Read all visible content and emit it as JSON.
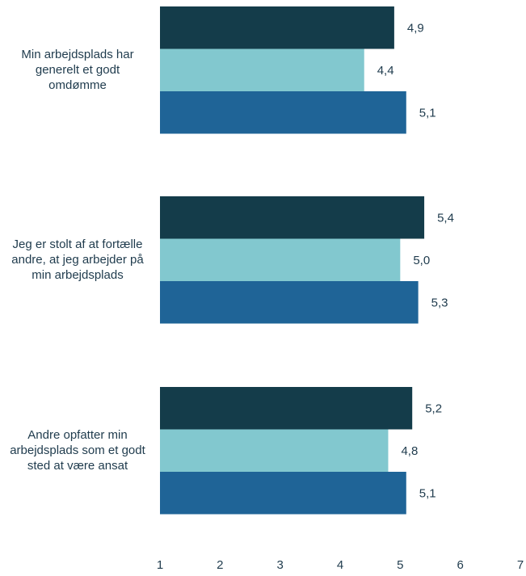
{
  "chart_data": {
    "type": "bar",
    "orientation": "horizontal",
    "categories": [
      "Min arbejdsplads har generelt et godt omdømme",
      "Jeg er stolt af at fortælle andre, at jeg arbejder på min arbejdsplads",
      "Andre opfatter min arbejdsplads som et godt sted at være ansat"
    ],
    "series": [
      {
        "color": "#143c4a",
        "values": [
          4.9,
          5.4,
          5.2
        ],
        "labels": [
          "4,9",
          "5,4",
          "5,2"
        ]
      },
      {
        "color": "#82c8cf",
        "values": [
          4.4,
          5.0,
          4.8
        ],
        "labels": [
          "4,4",
          "5,0",
          "4,8"
        ]
      },
      {
        "color": "#1f6497",
        "values": [
          5.1,
          5.3,
          5.1
        ],
        "labels": [
          "5,1",
          "5,3",
          "5,1"
        ]
      }
    ],
    "xlim": [
      1,
      7
    ],
    "xticks": [
      "1",
      "2",
      "3",
      "4",
      "5",
      "6",
      "7"
    ],
    "title": "",
    "xlabel": "",
    "ylabel": "",
    "grid": false,
    "legend": false
  }
}
